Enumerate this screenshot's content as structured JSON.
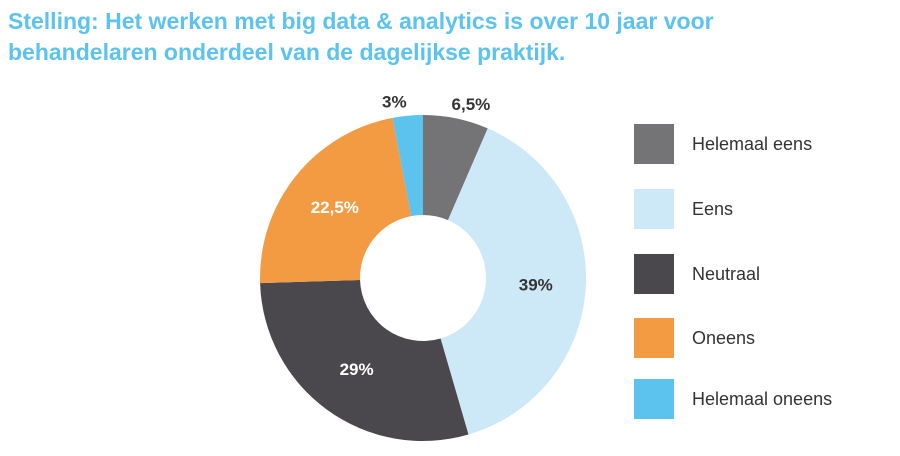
{
  "title_line1": "Stelling: Het werken met big data & analytics is over 10 jaar voor",
  "title_line2": "behandelaren onderdeel van de dagelijkse praktijk.",
  "colors": {
    "title": "#5bc3ee",
    "helemaal_eens": "#747476",
    "eens": "#cde8f6",
    "neutraal": "#4a484c",
    "oneens": "#f39b43",
    "helemaal_oneens": "#5bc3ee"
  },
  "chart_data": {
    "type": "pie",
    "variant": "donut",
    "title": "Stelling: Het werken met big data & analytics is over 10 jaar voor behandelaren onderdeel van de dagelijkse praktijk.",
    "legend_position": "right",
    "slices": [
      {
        "name": "Helemaal eens",
        "value": 6.5,
        "label": "6,5%",
        "color": "#747476",
        "label_color": "#333333",
        "label_outside": true
      },
      {
        "name": "Eens",
        "value": 39,
        "label": "39%",
        "color": "#cde8f6",
        "label_color": "#333333",
        "label_outside": false
      },
      {
        "name": "Neutraal",
        "value": 29,
        "label": "29%",
        "color": "#4a484c",
        "label_color": "#ffffff",
        "label_outside": false
      },
      {
        "name": "Oneens",
        "value": 22.5,
        "label": "22,5%",
        "color": "#f39b43",
        "label_color": "#ffffff",
        "label_outside": false
      },
      {
        "name": "Helemaal oneens",
        "value": 3,
        "label": "3%",
        "color": "#5bc3ee",
        "label_color": "#333333",
        "label_outside": true
      }
    ]
  }
}
